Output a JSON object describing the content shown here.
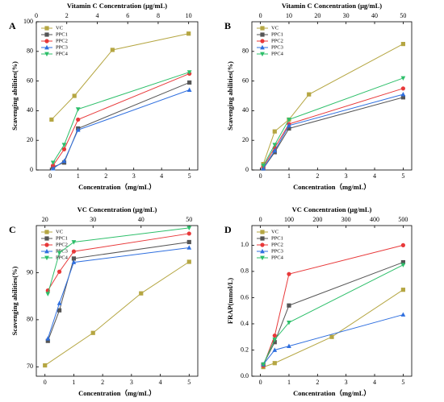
{
  "chart_data": [
    {
      "type": "line",
      "label": "A",
      "xlabel": "Concentration（mg/mL）",
      "x2label": "Vitamin C Concentration (μg/mL)",
      "ylabel": "Scavenging abilities(%)",
      "xlim": [
        -0.5,
        5.3
      ],
      "xticks": [
        0,
        1,
        2,
        3,
        4,
        5
      ],
      "x2lim": [
        0,
        10.6
      ],
      "x2ticks": [
        0,
        2,
        4,
        6,
        8,
        10
      ],
      "ylim": [
        0,
        100
      ],
      "yticks": [
        0,
        20,
        40,
        60,
        80,
        100
      ],
      "legend": "upper left",
      "series": [
        {
          "name": "VC",
          "color": "#b5a642",
          "marker": "square",
          "axis": "x2",
          "x": [
            1,
            2.5,
            5,
            10
          ],
          "values": [
            34,
            50,
            81,
            92
          ]
        },
        {
          "name": "PPC1",
          "color": "#555555",
          "marker": "square",
          "x": [
            0.1,
            0.5,
            1,
            5
          ],
          "values": [
            2,
            5,
            28,
            59
          ]
        },
        {
          "name": "PPC2",
          "color": "#e8393a",
          "marker": "circle",
          "x": [
            0.1,
            0.5,
            1,
            5
          ],
          "values": [
            3,
            14,
            34,
            65
          ]
        },
        {
          "name": "PPC3",
          "color": "#2f6fdf",
          "marker": "triangle-up",
          "x": [
            0.1,
            0.5,
            1,
            5
          ],
          "values": [
            1,
            6,
            27,
            54
          ]
        },
        {
          "name": "PPC4",
          "color": "#2dbf6a",
          "marker": "triangle-down",
          "x": [
            0.1,
            0.5,
            1,
            5
          ],
          "values": [
            5,
            17,
            41,
            66
          ]
        }
      ]
    },
    {
      "type": "line",
      "label": "B",
      "xlabel": "Concentration（mg/mL）",
      "x2label": "Vitamin C Concentration (μg/mL)",
      "ylabel": "Scavenging abilities(%)",
      "xlim": [
        -0.3,
        5.3
      ],
      "xticks": [
        0,
        1,
        2,
        3,
        4,
        5
      ],
      "x2lim": [
        -3,
        53
      ],
      "x2ticks": [
        0,
        10,
        20,
        30,
        40,
        50
      ],
      "ylim": [
        0,
        100
      ],
      "yticks": [
        0,
        20,
        40,
        60,
        80
      ],
      "legend": "upper left",
      "series": [
        {
          "name": "VC",
          "color": "#b5a642",
          "marker": "square",
          "axis": "x2",
          "x": [
            1,
            5,
            10,
            17,
            50
          ],
          "values": [
            4,
            26,
            34,
            51,
            85
          ]
        },
        {
          "name": "PPC1",
          "color": "#555555",
          "marker": "square",
          "x": [
            0.1,
            0.5,
            1,
            5
          ],
          "values": [
            1,
            12,
            28,
            49
          ]
        },
        {
          "name": "PPC2",
          "color": "#e8393a",
          "marker": "circle",
          "x": [
            0.1,
            0.5,
            1,
            5
          ],
          "values": [
            2,
            15,
            31,
            55
          ]
        },
        {
          "name": "PPC3",
          "color": "#2f6fdf",
          "marker": "triangle-up",
          "x": [
            0.1,
            0.5,
            1,
            5
          ],
          "values": [
            1,
            13,
            30,
            51
          ]
        },
        {
          "name": "PPC4",
          "color": "#2dbf6a",
          "marker": "triangle-down",
          "x": [
            0.1,
            0.5,
            1,
            5
          ],
          "values": [
            3,
            17,
            34,
            62
          ]
        }
      ]
    },
    {
      "type": "line",
      "label": "C",
      "xlabel": "Concentration（mg/mL）",
      "x2label": "VC Concentration (μg/mL)",
      "ylabel": "Scavenging abilities(%)",
      "xlim": [
        -0.3,
        5.3
      ],
      "xticks": [
        0,
        1,
        2,
        3,
        4,
        5
      ],
      "x2lim": [
        18.2,
        51.8
      ],
      "x2ticks": [
        20,
        30,
        40,
        50
      ],
      "ylim": [
        68,
        100
      ],
      "yticks": [
        70,
        80,
        90
      ],
      "legend": "upper left",
      "series": [
        {
          "name": "VC",
          "color": "#b5a642",
          "marker": "square",
          "axis": "x2",
          "x": [
            20,
            30,
            40,
            50
          ],
          "values": [
            70.3,
            77.2,
            85.6,
            92.3
          ]
        },
        {
          "name": "PPC1",
          "color": "#555555",
          "marker": "square",
          "x": [
            0.1,
            0.5,
            1,
            5
          ],
          "values": [
            75.5,
            82,
            93,
            96.5
          ]
        },
        {
          "name": "PPC2",
          "color": "#e8393a",
          "marker": "circle",
          "x": [
            0.1,
            0.5,
            1,
            5
          ],
          "values": [
            86.2,
            90.2,
            94.5,
            98.3
          ]
        },
        {
          "name": "PPC3",
          "color": "#2f6fdf",
          "marker": "triangle-up",
          "x": [
            0.1,
            0.5,
            1,
            5
          ],
          "values": [
            76,
            83.5,
            92.2,
            95.3
          ]
        },
        {
          "name": "PPC4",
          "color": "#2dbf6a",
          "marker": "triangle-down",
          "x": [
            0.1,
            0.5,
            1,
            5
          ],
          "values": [
            85.5,
            94.2,
            96.5,
            99.5
          ]
        }
      ]
    },
    {
      "type": "line",
      "label": "D",
      "xlabel": "Concentration（mg/mL）",
      "x2label": "VC Concentration (μg/mL)",
      "ylabel": "FRAP(mmol/L)",
      "xlim": [
        -0.3,
        5.3
      ],
      "xticks": [
        0,
        1,
        2,
        3,
        4,
        5
      ],
      "x2lim": [
        -30,
        530
      ],
      "x2ticks": [
        0,
        100,
        200,
        300,
        400,
        500
      ],
      "ylim": [
        0,
        1.15
      ],
      "yticks": [
        {
          "value": 0,
          "label": "0.0"
        },
        0.2,
        0.4,
        0.6,
        0.8,
        {
          "value": 1,
          "label": "1.0"
        }
      ],
      "legend": "upper left",
      "series": [
        {
          "name": "VC",
          "color": "#b5a642",
          "marker": "square",
          "axis": "x2",
          "x": [
            10,
            50,
            250,
            500
          ],
          "values": [
            0.07,
            0.1,
            0.3,
            0.66
          ]
        },
        {
          "name": "PPC1",
          "color": "#555555",
          "marker": "square",
          "x": [
            0.1,
            0.5,
            1,
            5
          ],
          "values": [
            0.09,
            0.26,
            0.54,
            0.87
          ]
        },
        {
          "name": "PPC2",
          "color": "#e8393a",
          "marker": "circle",
          "x": [
            0.1,
            0.5,
            1,
            5
          ],
          "values": [
            0.08,
            0.31,
            0.78,
            1
          ]
        },
        {
          "name": "PPC3",
          "color": "#2f6fdf",
          "marker": "triangle-up",
          "x": [
            0.1,
            0.5,
            1,
            5
          ],
          "values": [
            0.09,
            0.2,
            0.23,
            0.47
          ]
        },
        {
          "name": "PPC4",
          "color": "#2dbf6a",
          "marker": "triangle-down",
          "x": [
            0.1,
            0.5,
            1,
            5
          ],
          "values": [
            0.09,
            0.28,
            0.41,
            0.85
          ]
        }
      ]
    }
  ]
}
